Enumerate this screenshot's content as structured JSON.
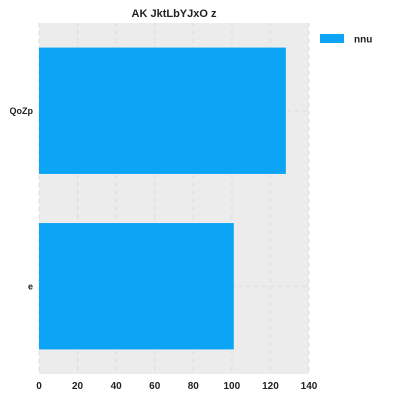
{
  "chart_data": {
    "type": "bar",
    "orientation": "horizontal",
    "title": "AK JktLbYJxO z",
    "xlabel": "",
    "ylabel": "",
    "categories": [
      "QoZp",
      "e"
    ],
    "series": [
      {
        "name": "nnu",
        "values": [
          128,
          101
        ],
        "color": "#0ca4f4"
      }
    ],
    "xlim": [
      0,
      140
    ],
    "xticks": [
      0,
      20,
      40,
      60,
      80,
      100,
      120,
      140
    ],
    "grid": true,
    "legend_position": "top-right",
    "plot_background": "#ececec"
  }
}
